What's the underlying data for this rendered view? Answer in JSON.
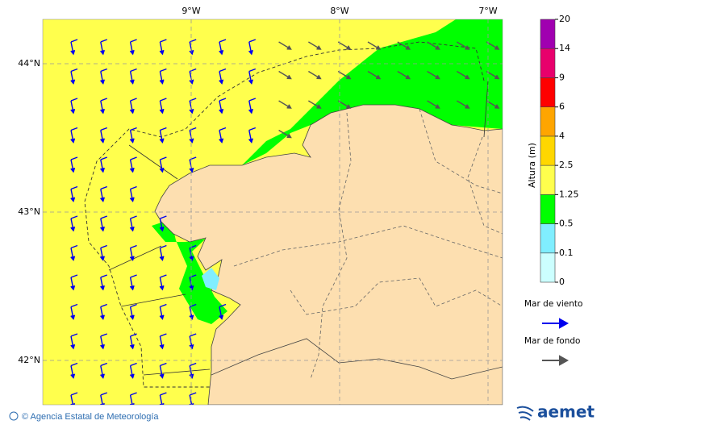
{
  "map": {
    "lon_labels": [
      "9°W",
      "8°W",
      "7°W"
    ],
    "lat_labels": [
      "44°N",
      "43°N",
      "42°N"
    ]
  },
  "colorbar": {
    "title": "Altura (m)",
    "levels": [
      0,
      0.1,
      0.5,
      1.25,
      2.5,
      4,
      6,
      9,
      14,
      20
    ],
    "colors": [
      "#ccffff",
      "#80eeff",
      "#00ff00",
      "#ffff4d",
      "#ffd700",
      "#ffa500",
      "#ff0000",
      "#e8006c",
      "#a000b0"
    ]
  },
  "legend": {
    "items": [
      {
        "label": "Mar de viento",
        "color": "#0000ee"
      },
      {
        "label": "Mar de fondo",
        "color": "#555555"
      }
    ]
  },
  "footer": {
    "credit": "© Agencia Estatal de Meteorología",
    "logo": "aemet"
  }
}
